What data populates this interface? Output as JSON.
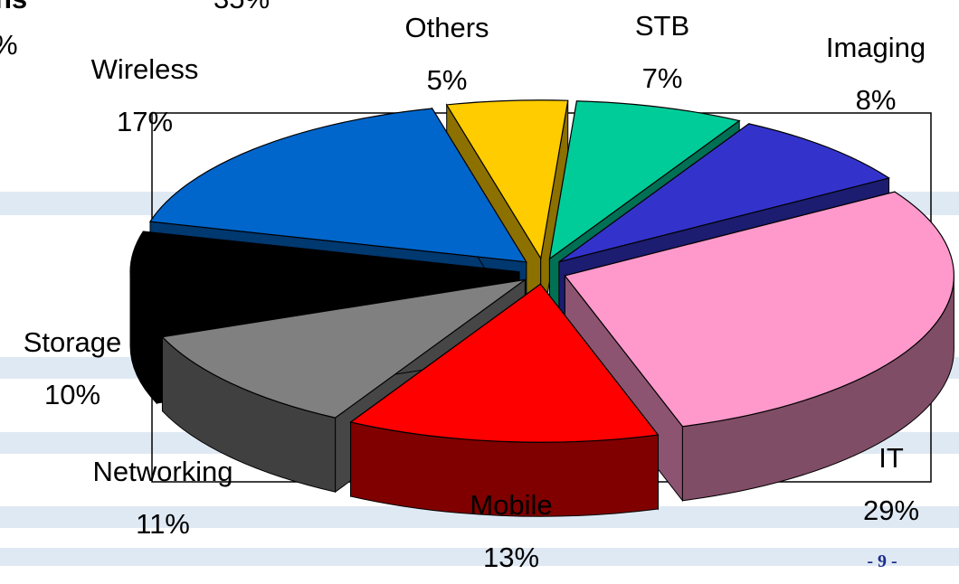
{
  "slide": {
    "page_number": "- 9 -",
    "clipped_text_top": "35%",
    "clipped_text_left_1": "ns",
    "clipped_text_left_2": "%"
  },
  "colors": {
    "background": "#ffffff",
    "watermark_stripes": "#dfe9f4",
    "page_number": "#1f2e8c"
  },
  "chart_data": {
    "type": "pie",
    "style": "3d-exploded",
    "categories": [
      "IT",
      "Mobile",
      "Networking",
      "Storage",
      "Wireless",
      "Others",
      "STB",
      "Imaging"
    ],
    "values": [
      29,
      13,
      11,
      10,
      17,
      5,
      7,
      8
    ],
    "value_labels": [
      "29%",
      "13%",
      "11%",
      "10%",
      "17%",
      "5%",
      "7%",
      "8%"
    ],
    "colors": [
      "#ff99cc",
      "#ff0000",
      "#808080",
      "#000000",
      "#0066cc",
      "#ffcc00",
      "#00cc99",
      "#3333cc"
    ],
    "legend": "none",
    "labels_placement": "outside"
  }
}
